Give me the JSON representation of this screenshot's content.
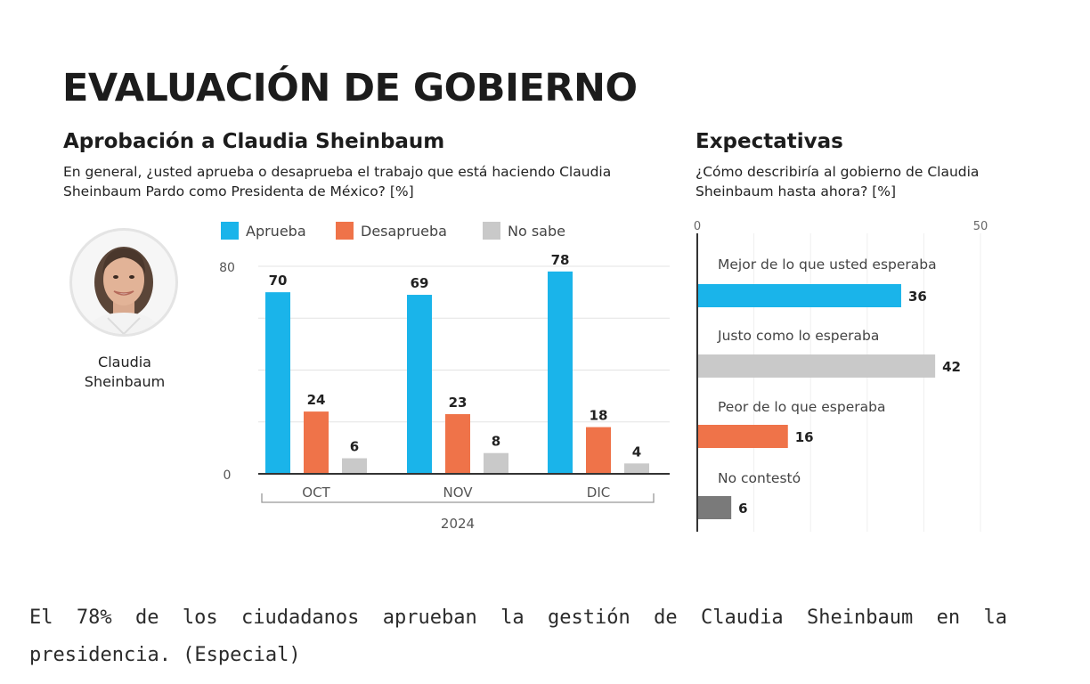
{
  "title": "EVALUACIÓN DE GOBIERNO",
  "colors": {
    "aprueba": "#1ab4ea",
    "desaprueba": "#ef7349",
    "no_sabe": "#c9c9c9",
    "no_contesto": "#7a7a7a",
    "dark_text": "#1c1c1c"
  },
  "approval": {
    "title": "Aprobación a Claudia Sheinbaum",
    "question": "En general, ¿usted aprueba o desaprueba el trabajo que está haciendo Claudia Sheinbaum Pardo como Presidenta de México? [%]",
    "legend": [
      "Aprueba",
      "Desaprueba",
      "No sabe"
    ],
    "person_name": "Claudia Sheinbaum"
  },
  "expectations": {
    "title": "Expectativas",
    "question": "¿Cómo describiría al gobierno de Claudia Sheinbaum hasta ahora? [%]"
  },
  "caption": "El 78% de los ciudadanos aprueban la gestión de Claudia Sheinbaum en la presidencia. (Especial)",
  "chart_data": [
    {
      "type": "bar",
      "title": "Aprobación a Claudia Sheinbaum",
      "categories": [
        "OCT",
        "NOV",
        "DIC"
      ],
      "xlabel": "2024",
      "ylabel": "",
      "ylim": [
        0,
        80
      ],
      "yticks": [
        0,
        80
      ],
      "grid": true,
      "legend_position": "top",
      "series": [
        {
          "name": "Aprueba",
          "values": [
            70,
            69,
            78
          ]
        },
        {
          "name": "Desaprueba",
          "values": [
            24,
            23,
            18
          ]
        },
        {
          "name": "No sabe",
          "values": [
            6,
            8,
            4
          ]
        }
      ]
    },
    {
      "type": "bar",
      "orientation": "horizontal",
      "title": "Expectativas",
      "categories": [
        "Mejor de lo que usted esperaba",
        "Justo como lo esperaba",
        "Peor de lo que esperaba",
        "No contestó"
      ],
      "values": [
        36,
        42,
        16,
        6
      ],
      "xlim": [
        0,
        50
      ],
      "xticks": [
        0,
        50
      ],
      "grid": true
    }
  ]
}
